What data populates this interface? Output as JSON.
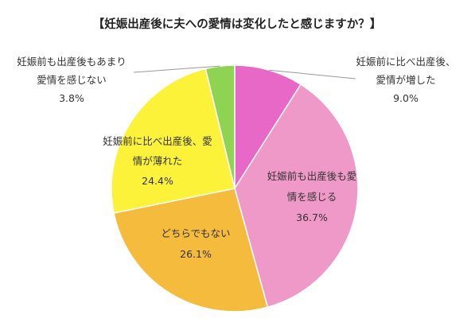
{
  "chart_data": {
    "type": "pie",
    "title": "【妊娠出産後に夫への愛情は変化したと感じますか？】",
    "start": "top",
    "direction": "clockwise",
    "slices": [
      {
        "label_lines": [
          "妊娠前に比べ出産後、",
          "愛情が増した"
        ],
        "value": 9.0,
        "value_label": "9.0%",
        "color": "#e868c8"
      },
      {
        "label_lines": [
          "妊娠前も出産後も愛",
          "情を感じる"
        ],
        "value": 36.7,
        "value_label": "36.7%",
        "color": "#ef99c8"
      },
      {
        "label_lines": [
          "どちらでもない"
        ],
        "value": 26.1,
        "value_label": "26.1%",
        "color": "#f5bb3c"
      },
      {
        "label_lines": [
          "妊娠前に比べ出産後、愛",
          "情が薄れた"
        ],
        "value": 24.4,
        "value_label": "24.4%",
        "color": "#fdf23a"
      },
      {
        "label_lines": [
          "妊娠前も出産後もあまり",
          "愛情を感じない"
        ],
        "value": 3.8,
        "value_label": "3.8%",
        "color": "#8ed452"
      }
    ]
  }
}
